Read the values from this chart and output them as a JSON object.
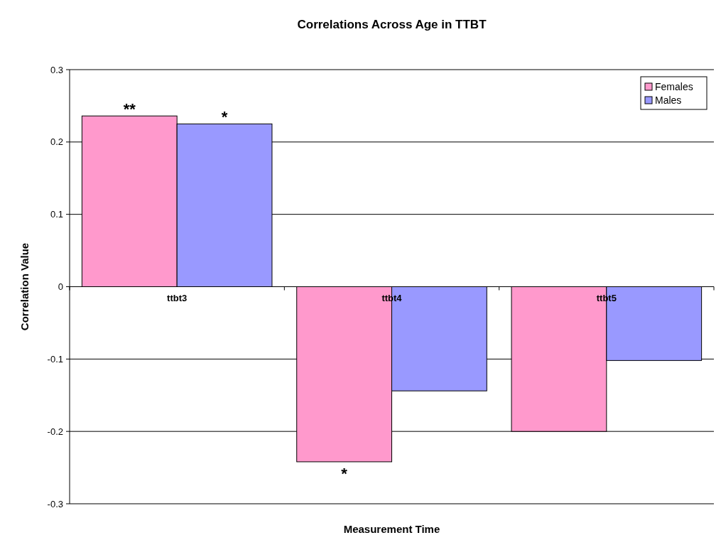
{
  "chart_data": {
    "type": "bar",
    "title": "Correlations Across Age in TTBT",
    "xlabel": "Measurement Time",
    "ylabel": "Correlation Value",
    "categories": [
      "ttbt3",
      "ttbt4",
      "ttbt5"
    ],
    "series": [
      {
        "name": "Females",
        "color": "#ff99cc",
        "values": [
          0.236,
          -0.242,
          -0.2
        ]
      },
      {
        "name": "Males",
        "color": "#9999ff",
        "values": [
          0.225,
          -0.144,
          -0.102
        ]
      }
    ],
    "ylim": [
      -0.3,
      0.3
    ],
    "yticks": [
      -0.3,
      -0.2,
      -0.1,
      0,
      0.1,
      0.2,
      0.3
    ],
    "grid": "y",
    "legend": "top right",
    "annotations": [
      {
        "text": "**",
        "x": "ttbt3",
        "y": 0.236
      },
      {
        "text": "*",
        "x": "ttbt3",
        "y": 0.225
      },
      {
        "text": "*",
        "x": "ttbt4",
        "y": -0.242
      }
    ]
  }
}
